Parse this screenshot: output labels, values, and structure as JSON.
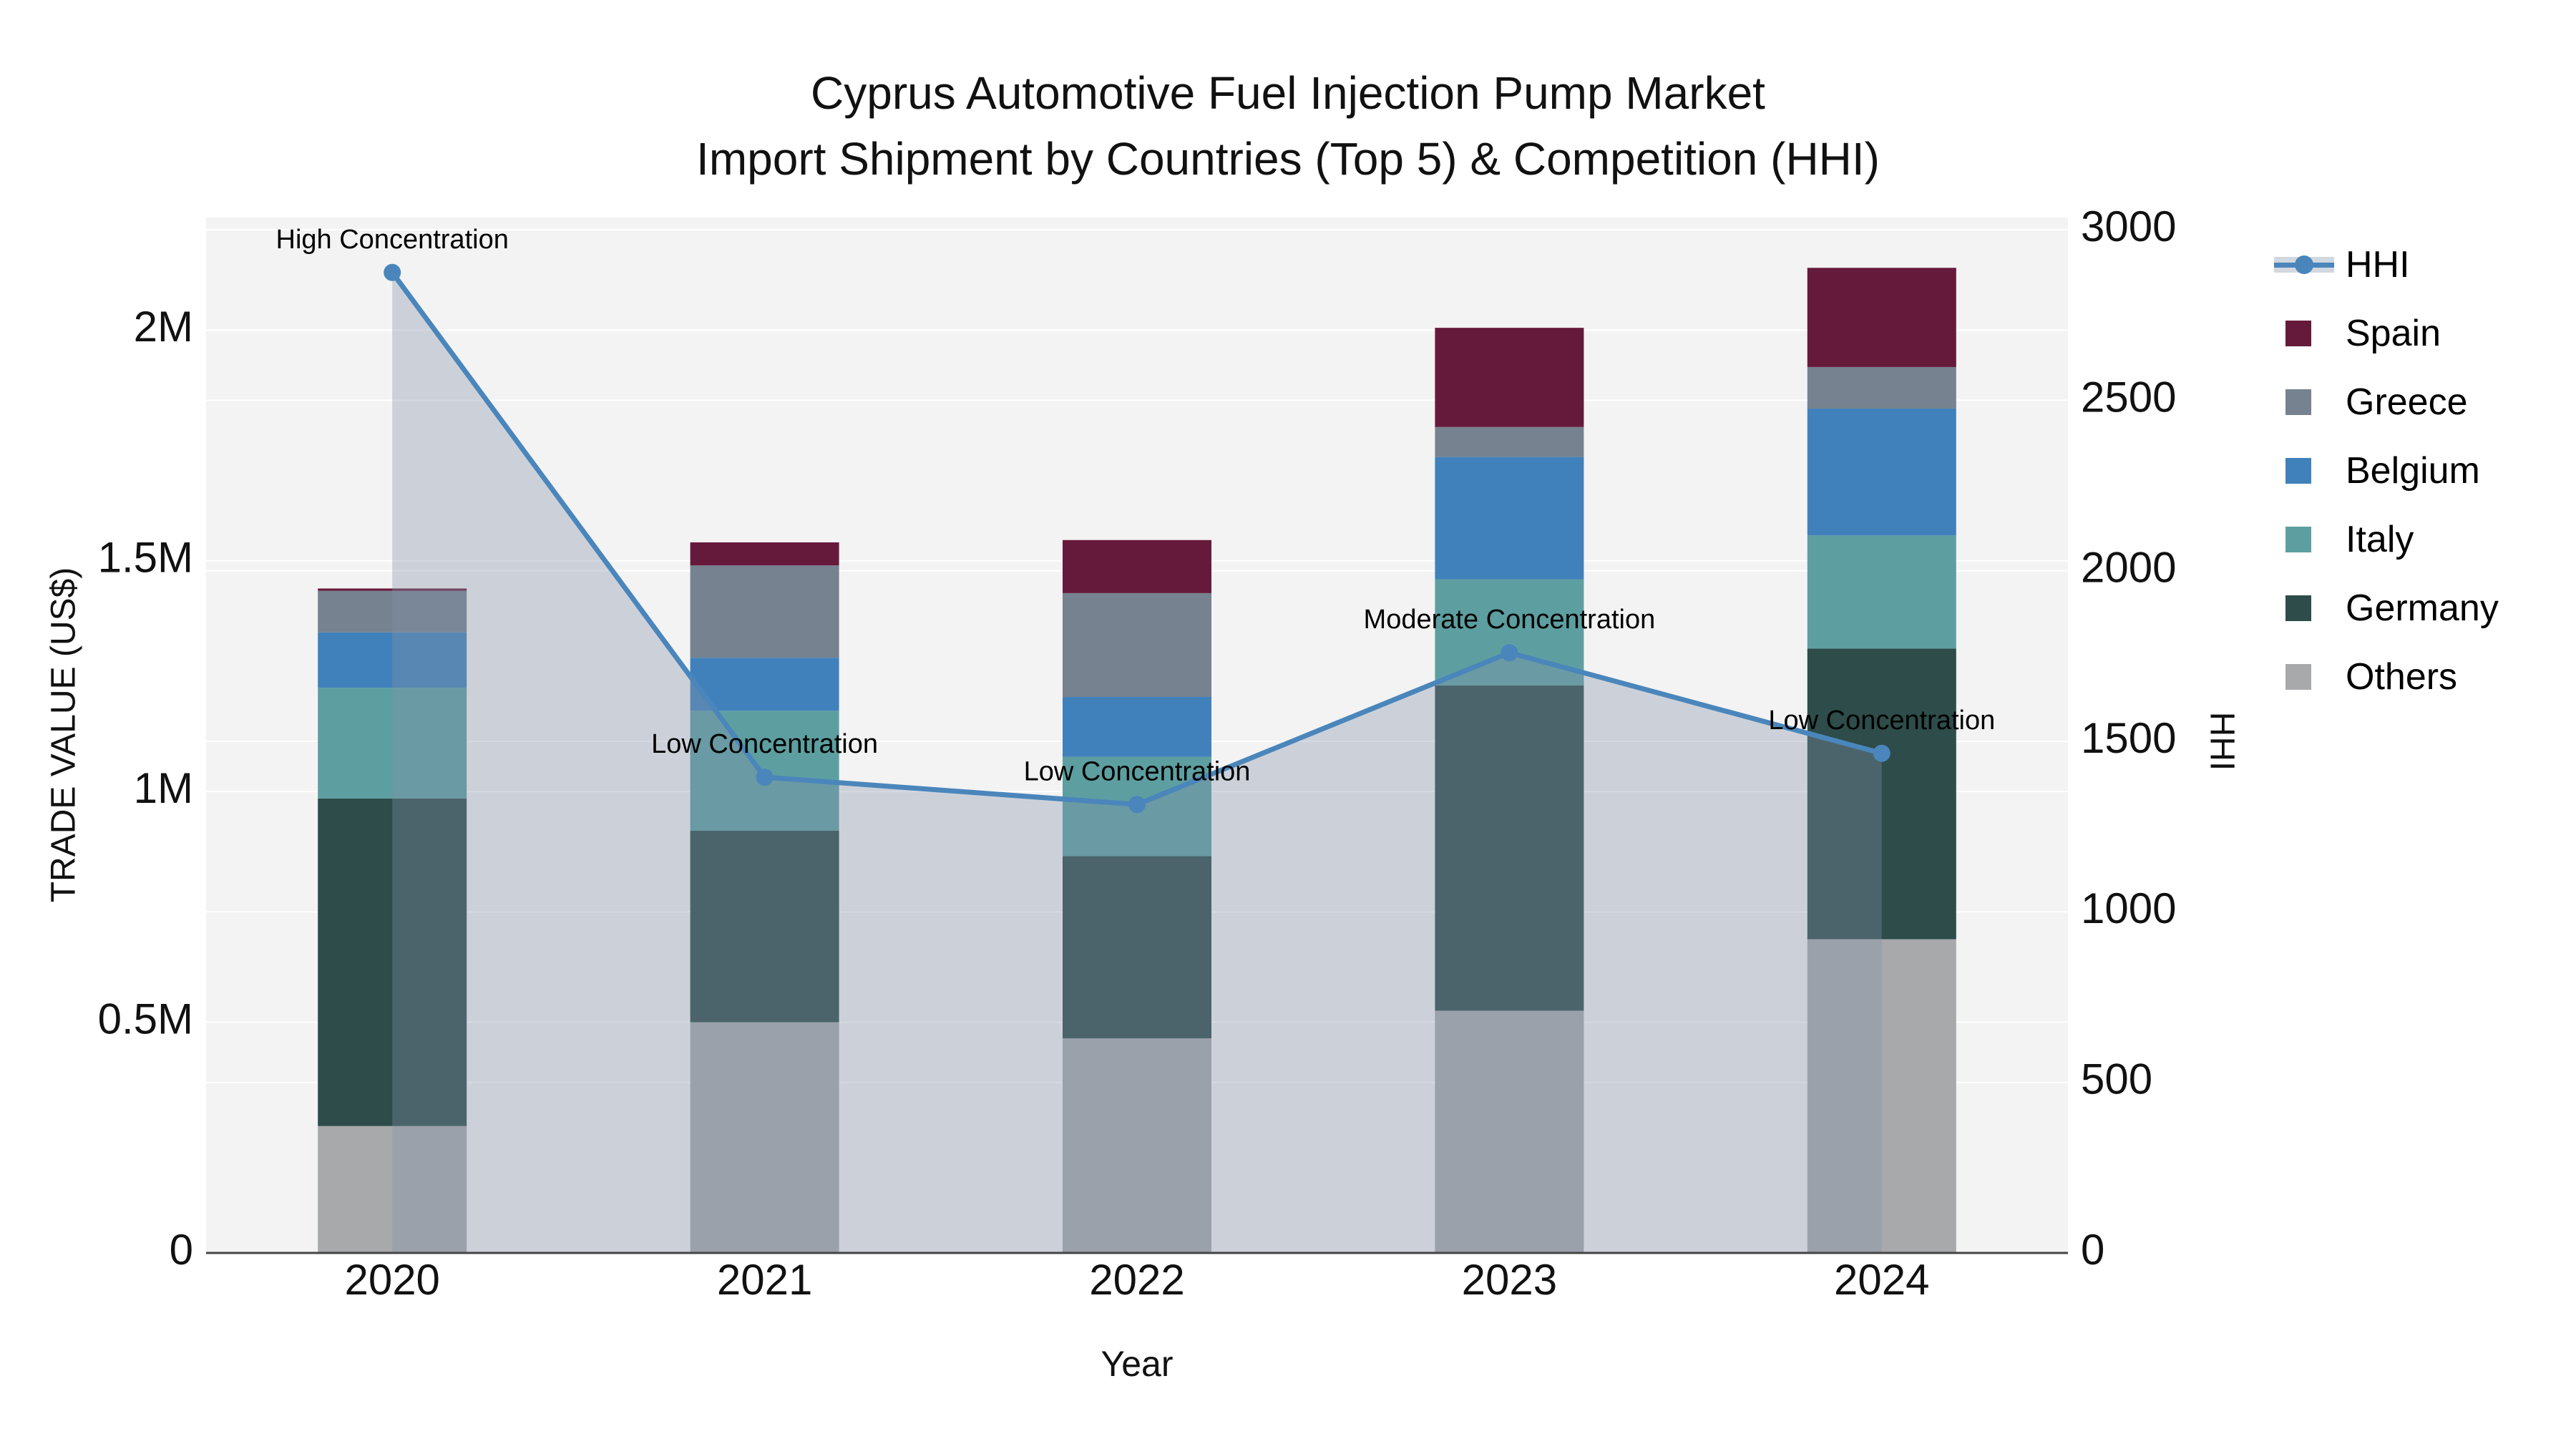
{
  "title": {
    "line1": "Cyprus Automotive Fuel Injection Pump Market",
    "line2": "Import Shipment by Countries (Top 5) & Competition (HHI)"
  },
  "axes": {
    "x": {
      "title": "Year",
      "categories": [
        "2020",
        "2021",
        "2022",
        "2023",
        "2024"
      ]
    },
    "y_left": {
      "title": "TRADE VALUE (US$)",
      "ticks": [
        {
          "value": 0,
          "label": "0"
        },
        {
          "value": 500000,
          "label": "0.5M"
        },
        {
          "value": 1000000,
          "label": "1M"
        },
        {
          "value": 1500000,
          "label": "1.5M"
        },
        {
          "value": 2000000,
          "label": "2M"
        }
      ]
    },
    "y_right": {
      "title": "HHI",
      "ticks": [
        {
          "value": 0,
          "label": "0"
        },
        {
          "value": 500,
          "label": "500"
        },
        {
          "value": 1000,
          "label": "1000"
        },
        {
          "value": 1500,
          "label": "1500"
        },
        {
          "value": 2000,
          "label": "2000"
        },
        {
          "value": 2500,
          "label": "2500"
        },
        {
          "value": 3000,
          "label": "3000"
        }
      ]
    }
  },
  "legend": {
    "items": [
      {
        "label": "HHI",
        "type": "line",
        "color": "#4a86bb"
      },
      {
        "label": "Spain",
        "type": "swatch",
        "color": "#661a3b"
      },
      {
        "label": "Greece",
        "type": "swatch",
        "color": "#76828f"
      },
      {
        "label": "Belgium",
        "type": "swatch",
        "color": "#4181bb"
      },
      {
        "label": "Italy",
        "type": "swatch",
        "color": "#5d9fa0"
      },
      {
        "label": "Germany",
        "type": "swatch",
        "color": "#2d4c4a"
      },
      {
        "label": "Others",
        "type": "swatch",
        "color": "#a8a9ab"
      }
    ]
  },
  "colors": {
    "plot_bg": "#f3f3f3",
    "grid": "#ffffff",
    "axis_line": "#444444",
    "text": "#111111",
    "hhi_line": "#4a86bb",
    "hhi_fill": "rgba(133,147,168,0.35)"
  },
  "chart_data": {
    "type": "bar+line",
    "categories": [
      2020,
      2021,
      2022,
      2023,
      2024
    ],
    "bar_value_unit": "US$ trade value",
    "series": [
      {
        "name": "Others",
        "color": "#a8a9ab",
        "values": [
          275000,
          500000,
          465000,
          525000,
          680000
        ]
      },
      {
        "name": "Germany",
        "color": "#2d4c4a",
        "values": [
          710000,
          415000,
          395000,
          705000,
          630000
        ]
      },
      {
        "name": "Italy",
        "color": "#5d9fa0",
        "values": [
          240000,
          260000,
          215000,
          230000,
          245000
        ]
      },
      {
        "name": "Belgium",
        "color": "#4181bb",
        "values": [
          120000,
          115000,
          130000,
          265000,
          275000
        ]
      },
      {
        "name": "Greece",
        "color": "#76828f",
        "values": [
          90000,
          200000,
          225000,
          65000,
          90000
        ]
      },
      {
        "name": "Spain",
        "color": "#661a3b",
        "values": [
          5000,
          50000,
          115000,
          215000,
          215000
        ]
      }
    ],
    "stack_totals": [
      1440000,
      1540000,
      1545000,
      2005000,
      2135000
    ],
    "line_series": {
      "name": "HHI",
      "values": [
        2875,
        1395,
        1315,
        1760,
        1465
      ]
    },
    "annotations": [
      {
        "year": 2020,
        "text": "High Concentration"
      },
      {
        "year": 2021,
        "text": "Low Concentration"
      },
      {
        "year": 2022,
        "text": "Low Concentration"
      },
      {
        "year": 2023,
        "text": "Moderate Concentration"
      },
      {
        "year": 2024,
        "text": "Low Concentration"
      }
    ],
    "xlabel": "Year",
    "ylabel_left": "TRADE VALUE (US$)",
    "ylabel_right": "HHI",
    "y_left_range": [
      0,
      2244000
    ],
    "y_right_range": [
      0,
      3036
    ],
    "grid": true,
    "legend_position": "outside-right-top"
  }
}
